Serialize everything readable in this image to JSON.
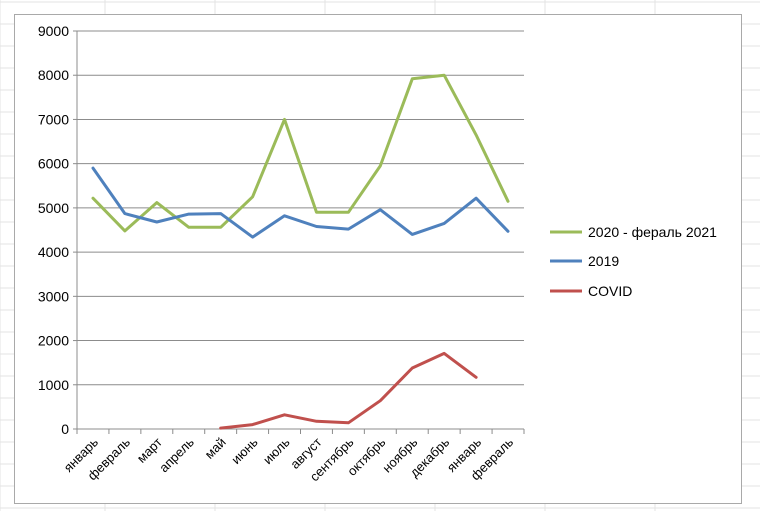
{
  "chart_data": {
    "type": "line",
    "title": "",
    "xlabel": "",
    "ylabel": "",
    "ylim": [
      0,
      9000
    ],
    "y_ticks": [
      0,
      1000,
      2000,
      3000,
      4000,
      5000,
      6000,
      7000,
      8000,
      9000
    ],
    "grid": "horizontal",
    "legend_position": "right",
    "categories": [
      "январь",
      "февраль",
      "март",
      "апрель",
      "май",
      "июнь",
      "июль",
      "август",
      "сентябрь",
      "октябрь",
      "ноябрь",
      "декабрь",
      "январь",
      "февраль"
    ],
    "series": [
      {
        "name": "2020 - фераль 2021",
        "color": "#9bbb59",
        "values": [
          5220,
          4480,
          5120,
          4560,
          4560,
          5250,
          7000,
          4900,
          4900,
          5950,
          7920,
          8000,
          6650,
          5150
        ]
      },
      {
        "name": "2019",
        "color": "#4f81bd",
        "values": [
          5900,
          4870,
          4680,
          4860,
          4870,
          4340,
          4820,
          4580,
          4520,
          4960,
          4400,
          4650,
          5220,
          4470
        ]
      },
      {
        "name": "COVID",
        "color": "#c0504d",
        "values": [
          null,
          null,
          null,
          null,
          20,
          100,
          320,
          175,
          140,
          640,
          1380,
          1710,
          1170,
          null
        ]
      }
    ]
  }
}
